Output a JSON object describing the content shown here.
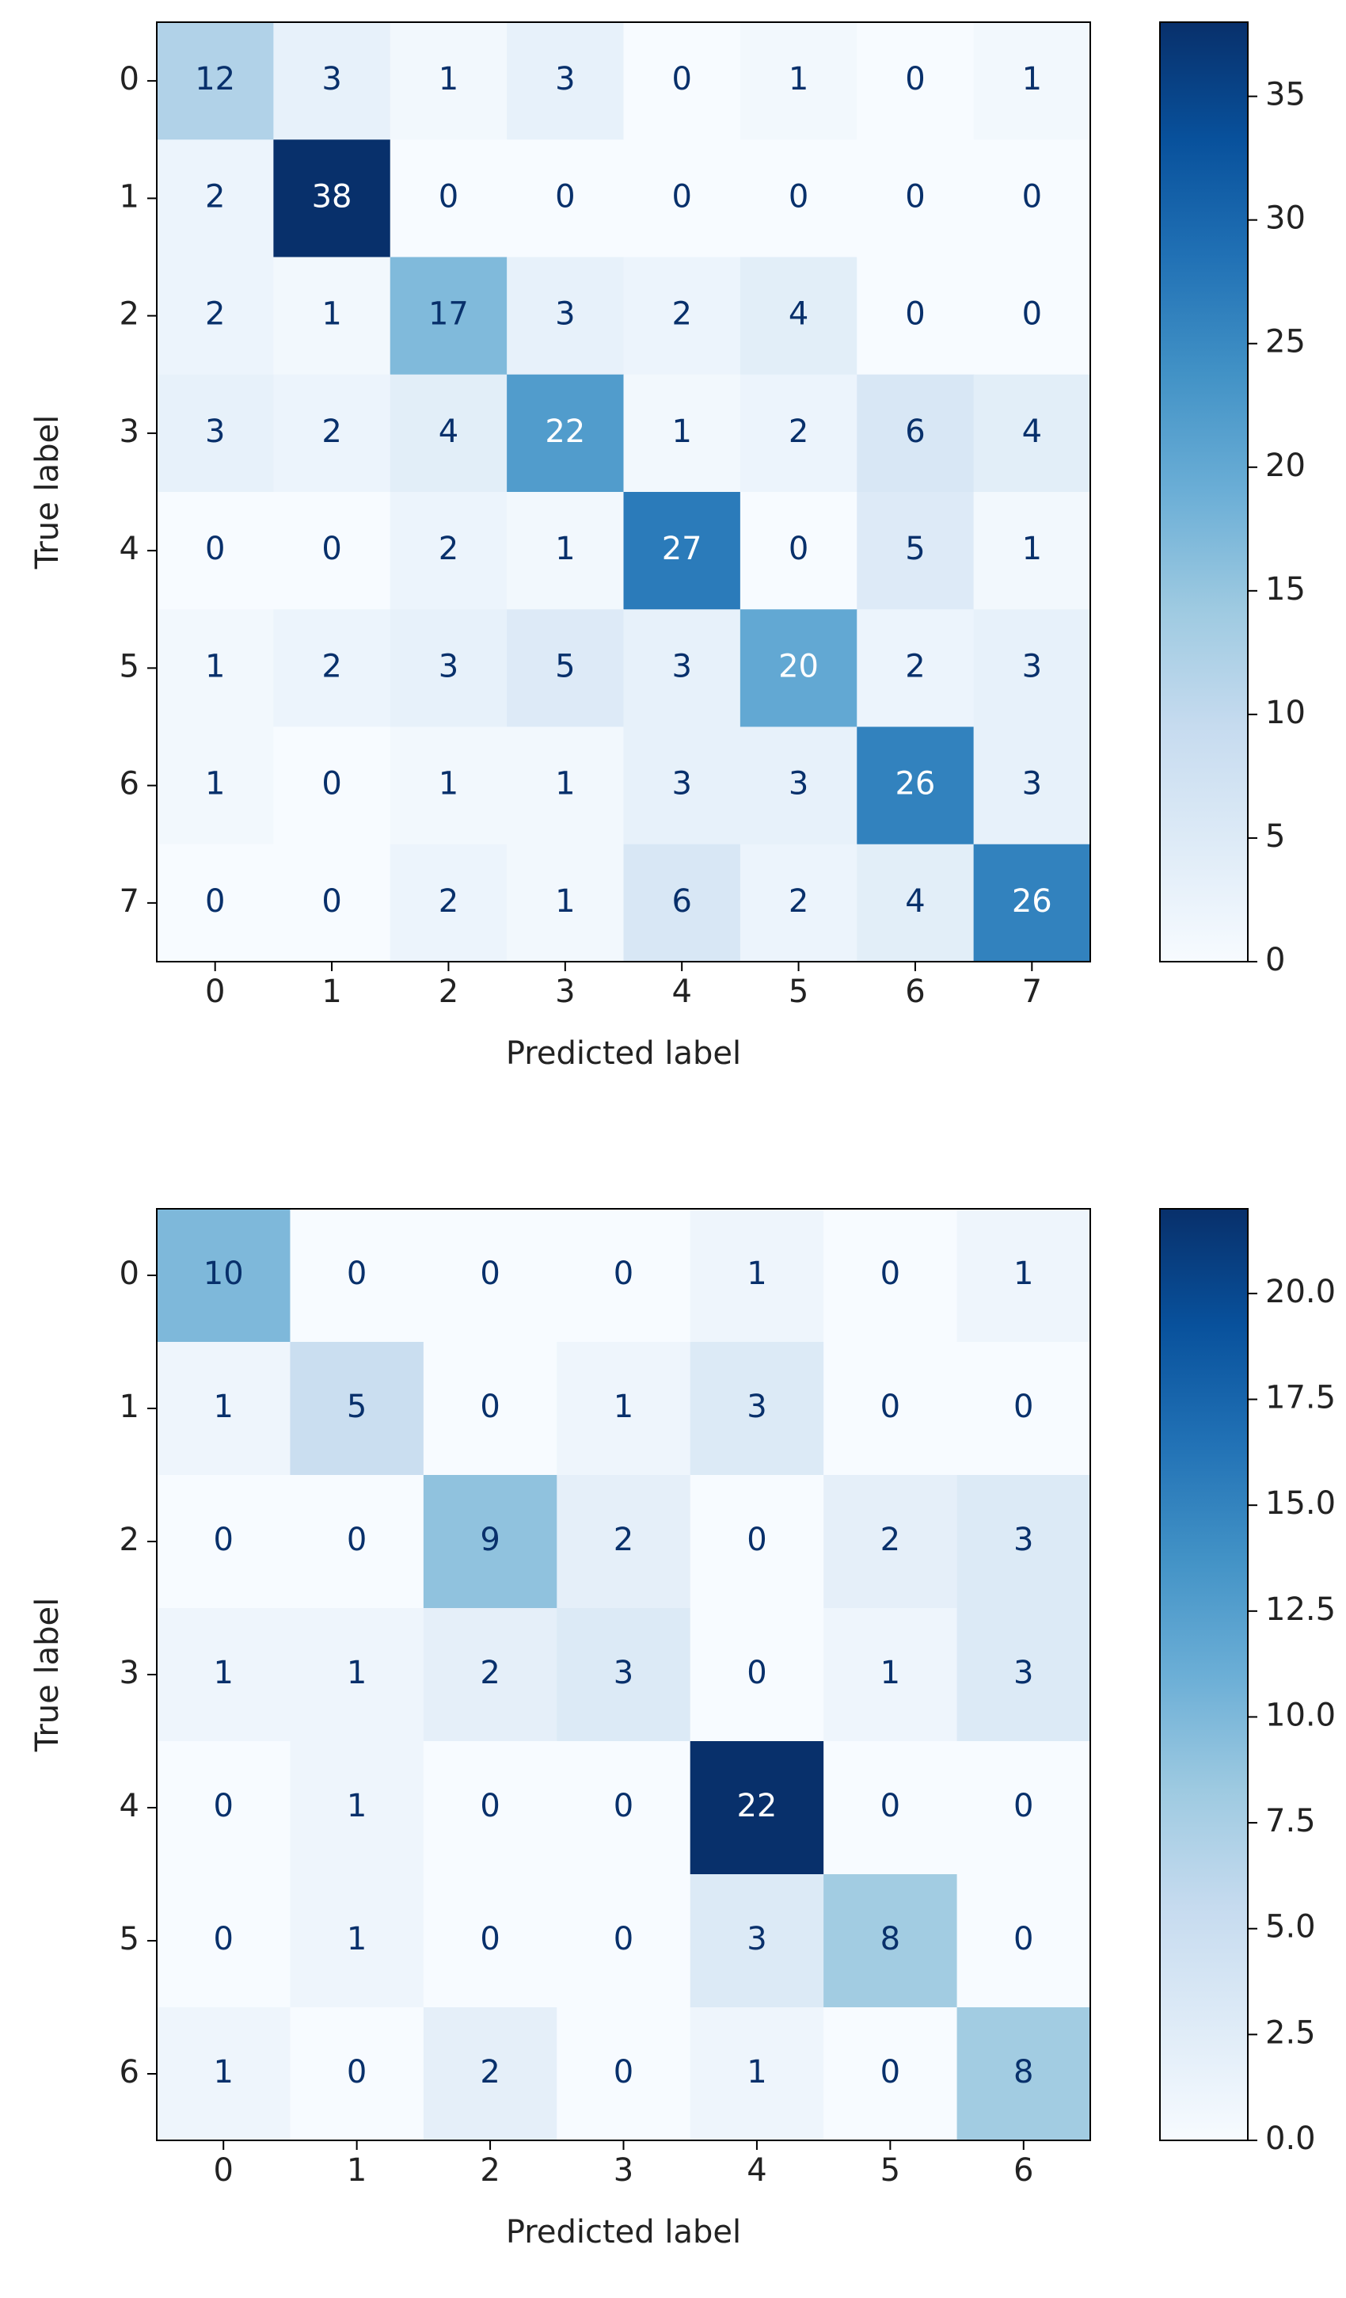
{
  "chart_data": [
    {
      "type": "heatmap",
      "colormap": "Blues",
      "xlabel": "Predicted label",
      "ylabel": "True label",
      "x_categories": [
        "0",
        "1",
        "2",
        "3",
        "4",
        "5",
        "6",
        "7"
      ],
      "y_categories": [
        "0",
        "1",
        "2",
        "3",
        "4",
        "5",
        "6",
        "7"
      ],
      "values": [
        [
          12,
          3,
          1,
          3,
          0,
          1,
          0,
          1
        ],
        [
          2,
          38,
          0,
          0,
          0,
          0,
          0,
          0
        ],
        [
          2,
          1,
          17,
          3,
          2,
          4,
          0,
          0
        ],
        [
          3,
          2,
          4,
          22,
          1,
          2,
          6,
          4
        ],
        [
          0,
          0,
          2,
          1,
          27,
          0,
          5,
          1
        ],
        [
          1,
          2,
          3,
          5,
          3,
          20,
          2,
          3
        ],
        [
          1,
          0,
          1,
          1,
          3,
          3,
          26,
          3
        ],
        [
          0,
          0,
          2,
          1,
          6,
          2,
          4,
          26
        ]
      ],
      "zlim": [
        0,
        38
      ],
      "zticks": [
        0,
        5,
        10,
        15,
        20,
        25,
        30,
        35
      ]
    },
    {
      "type": "heatmap",
      "colormap": "Blues",
      "xlabel": "Predicted label",
      "ylabel": "True label",
      "x_categories": [
        "0",
        "1",
        "2",
        "3",
        "4",
        "5",
        "6"
      ],
      "y_categories": [
        "0",
        "1",
        "2",
        "3",
        "4",
        "5",
        "6"
      ],
      "values": [
        [
          10,
          0,
          0,
          0,
          1,
          0,
          1
        ],
        [
          1,
          5,
          0,
          1,
          3,
          0,
          0
        ],
        [
          0,
          0,
          9,
          2,
          0,
          2,
          3
        ],
        [
          1,
          1,
          2,
          3,
          0,
          1,
          3
        ],
        [
          0,
          1,
          0,
          0,
          22,
          0,
          0
        ],
        [
          0,
          1,
          0,
          0,
          3,
          8,
          0
        ],
        [
          1,
          0,
          2,
          0,
          1,
          0,
          8
        ]
      ],
      "zlim": [
        0,
        22
      ],
      "zticks": [
        {
          "value": 0,
          "label": "0.0"
        },
        {
          "value": 2.5,
          "label": "2.5"
        },
        {
          "value": 5,
          "label": "5.0"
        },
        {
          "value": 7.5,
          "label": "7.5"
        },
        {
          "value": 10,
          "label": "10.0"
        },
        {
          "value": 12.5,
          "label": "12.5"
        },
        {
          "value": 15,
          "label": "15.0"
        },
        {
          "value": 17.5,
          "label": "17.5"
        },
        {
          "value": 20,
          "label": "20.0"
        }
      ]
    }
  ]
}
